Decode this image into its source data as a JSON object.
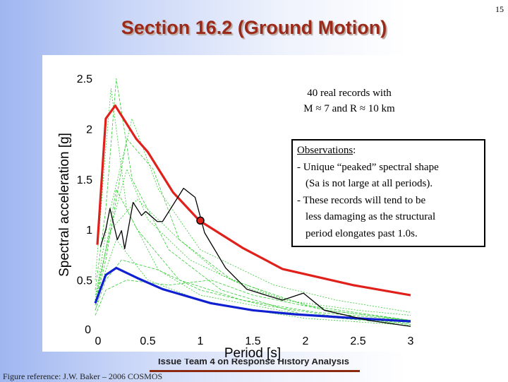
{
  "slide": {
    "title": "Section 16.2 (Ground Motion)",
    "page_number": "15",
    "footer": "Issue Team 4 on Response History Analysis",
    "reference": "Figure reference: J.W. Baker – 2006 COSMOS"
  },
  "note": {
    "line1": "40 real records with",
    "line2": "M ≈ 7 and R ≈ 10 km"
  },
  "observations": {
    "heading": "Observations",
    "colon": ":",
    "items": [
      "- Unique “peaked” spectral shape",
      "(Sa is not large at all periods).",
      "- These records will tend to be",
      "less damaging as the structural",
      "period elongates past 1.0s."
    ]
  },
  "chart_data": {
    "type": "line",
    "xlabel": "Period [s]",
    "ylabel": "Spectral acceleration [g]",
    "xlim": [
      0,
      3
    ],
    "ylim": [
      0,
      2.5
    ],
    "xticks": [
      "0",
      "0.5",
      "1",
      "1.5",
      "2",
      "2.5",
      "3"
    ],
    "yticks": [
      "0",
      "0.5",
      "1",
      "1.5",
      "2",
      "2.5"
    ],
    "grid": false,
    "colors": {
      "red": "#e0201a",
      "blue": "#1020d0",
      "black": "#000000",
      "green": "#33cc33"
    },
    "series": [
      {
        "key": "red",
        "x": [
          0.02,
          0.1,
          0.19,
          0.39,
          0.5,
          0.74,
          0.99,
          1.4,
          1.78,
          2.45,
          3.0
        ],
        "y": [
          0.85,
          2.1,
          2.23,
          1.9,
          1.77,
          1.37,
          1.09,
          0.82,
          0.61,
          0.45,
          0.35
        ]
      },
      {
        "key": "blue",
        "x": [
          0,
          0.1,
          0.2,
          0.4,
          0.64,
          1.1,
          1.5,
          1.9,
          2.5,
          3.0
        ],
        "y": [
          0.27,
          0.55,
          0.62,
          0.52,
          0.41,
          0.27,
          0.2,
          0.16,
          0.12,
          0.09
        ]
      },
      {
        "key": "black",
        "x": [
          0.05,
          0.1,
          0.14,
          0.21,
          0.25,
          0.28,
          0.36,
          0.44,
          0.48,
          0.59,
          0.64,
          0.84,
          0.95,
          1.04,
          1.24,
          1.44,
          1.78,
          1.98,
          2.18,
          2.6,
          3.0
        ],
        "y": [
          0.83,
          1.0,
          1.21,
          0.9,
          0.99,
          0.81,
          1.27,
          1.14,
          1.18,
          1.08,
          1.08,
          1.41,
          1.32,
          0.97,
          0.62,
          0.41,
          0.3,
          0.37,
          0.2,
          0.1,
          0.04
        ]
      }
    ],
    "records_sample": [
      {
        "x": [
          0,
          0.1,
          0.15,
          0.3,
          0.6,
          1,
          2,
          3
        ],
        "y": [
          0.5,
          1.8,
          2.4,
          1.2,
          0.6,
          0.35,
          0.15,
          0.08
        ]
      },
      {
        "x": [
          0,
          0.1,
          0.2,
          0.35,
          0.7,
          1.2,
          2,
          3
        ],
        "y": [
          0.4,
          1.2,
          2.5,
          1.5,
          0.8,
          0.4,
          0.15,
          0.06
        ]
      },
      {
        "x": [
          0,
          0.12,
          0.3,
          0.5,
          0.9,
          1.5,
          2.2,
          3
        ],
        "y": [
          0.3,
          0.9,
          1.6,
          1.1,
          0.7,
          0.4,
          0.2,
          0.1
        ]
      },
      {
        "x": [
          0,
          0.1,
          0.25,
          0.6,
          1,
          1.6,
          2.4,
          3
        ],
        "y": [
          0.2,
          0.5,
          0.7,
          0.6,
          0.4,
          0.25,
          0.12,
          0.07
        ]
      },
      {
        "x": [
          0,
          0.15,
          0.4,
          0.8,
          1.2,
          1.8,
          2.5,
          3
        ],
        "y": [
          0.35,
          1.0,
          1.3,
          0.9,
          0.55,
          0.3,
          0.2,
          0.15
        ]
      },
      {
        "x": [
          0,
          0.1,
          0.3,
          0.55,
          0.8,
          1.3,
          2,
          3
        ],
        "y": [
          0.25,
          0.7,
          1.9,
          1.6,
          0.9,
          0.5,
          0.25,
          0.1
        ]
      },
      {
        "x": [
          0,
          0.1,
          0.2,
          0.5,
          1,
          1.5,
          2,
          3
        ],
        "y": [
          0.2,
          0.6,
          0.9,
          0.5,
          0.3,
          0.2,
          0.12,
          0.05
        ]
      },
      {
        "x": [
          0,
          0.1,
          0.3,
          0.7,
          1.1,
          1.5,
          2.2,
          3
        ],
        "y": [
          0.15,
          0.4,
          0.5,
          0.45,
          0.5,
          0.35,
          0.2,
          0.1
        ]
      },
      {
        "x": [
          0,
          0.12,
          0.35,
          0.6,
          1,
          1.7,
          2.3,
          3
        ],
        "y": [
          0.3,
          1.1,
          2.1,
          1.4,
          0.8,
          0.45,
          0.3,
          0.18
        ]
      },
      {
        "x": [
          0,
          0.1,
          0.2,
          0.4,
          0.8,
          1.4,
          2.1,
          3
        ],
        "y": [
          0.25,
          0.8,
          1.4,
          1.0,
          0.5,
          0.3,
          0.18,
          0.1
        ]
      }
    ],
    "marker": {
      "x": 1.0,
      "y": 1.09
    }
  }
}
